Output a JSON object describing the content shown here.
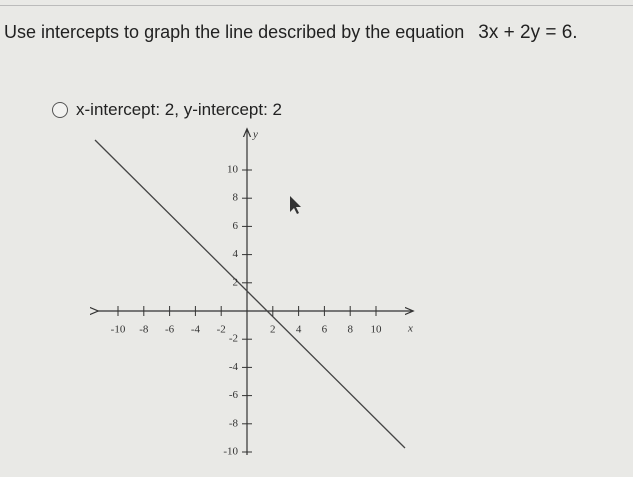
{
  "question": {
    "text": "Use intercepts to graph the line described by the equation",
    "equation": "3x + 2y = 6."
  },
  "option": {
    "label": "x-intercept: 2, y-intercept: 2"
  },
  "graph": {
    "x_label": "x",
    "y_label": "y",
    "xticks": [
      -10,
      -8,
      -6,
      -4,
      -2,
      2,
      4,
      6,
      8,
      10
    ],
    "yticks": [
      -10,
      -8,
      -6,
      -4,
      -2,
      2,
      4,
      6,
      8,
      10
    ]
  }
}
